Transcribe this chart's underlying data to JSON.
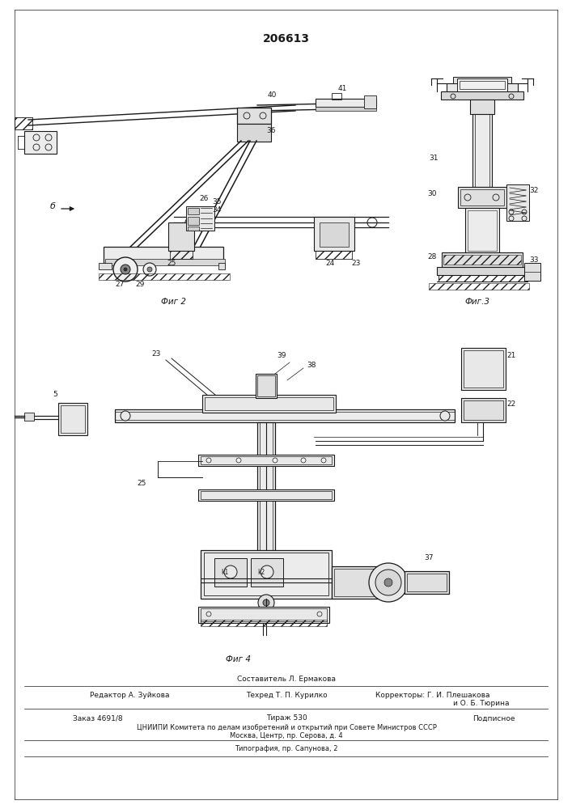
{
  "patent_number": "206613",
  "background_color": "#ffffff",
  "line_color": "#1a1a1a",
  "fig_width": 7.07,
  "fig_height": 10.0,
  "dpi": 100,
  "fig2_caption": "Фиг 2",
  "fig3_caption": "Фиг.3",
  "fig4_caption": "Фиг 4",
  "label_b": "б"
}
